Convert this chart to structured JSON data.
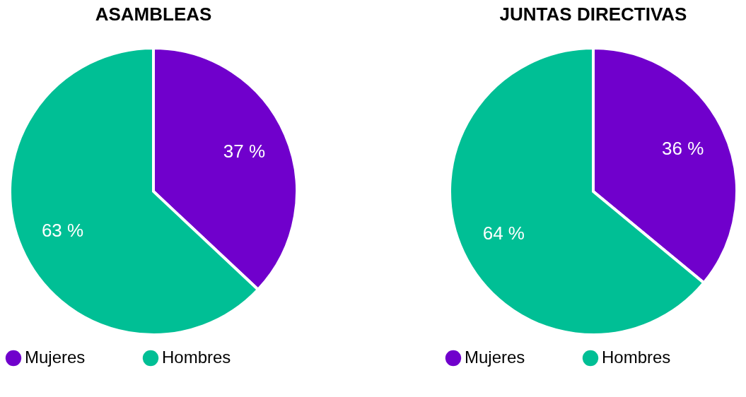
{
  "chart_data": [
    {
      "type": "pie",
      "title": "ASAMBLEAS",
      "categories": [
        "Mujeres",
        "Hombres"
      ],
      "values": [
        37,
        63
      ],
      "colors": [
        "#7000cc",
        "#00bf95"
      ],
      "value_labels": [
        "37 %",
        "63 %"
      ],
      "legend": "bottom"
    },
    {
      "type": "pie",
      "title": "JUNTAS DIRECTIVAS",
      "categories": [
        "Mujeres",
        "Hombres"
      ],
      "values": [
        36,
        64
      ],
      "colors": [
        "#7000cc",
        "#00bf95"
      ],
      "value_labels": [
        "36 %",
        "64 %"
      ],
      "legend": "bottom"
    }
  ]
}
